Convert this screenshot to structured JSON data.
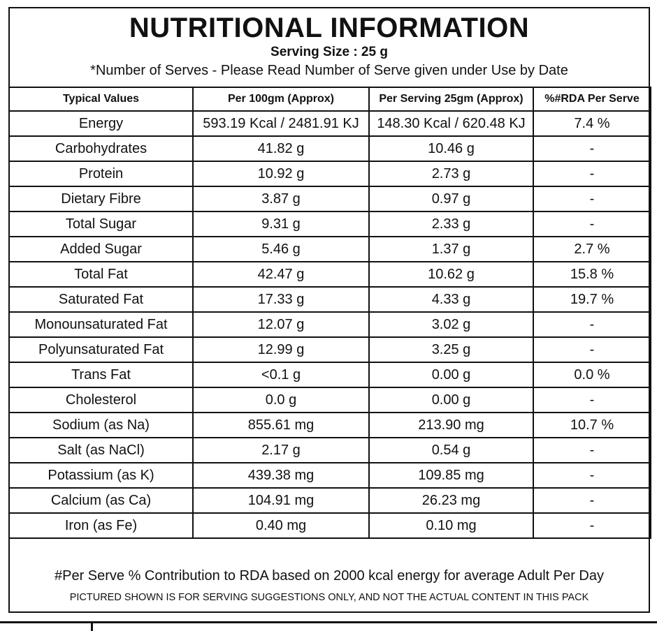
{
  "header": {
    "title": "NUTRITIONAL INFORMATION",
    "serving_size": "Serving Size : 25 g",
    "note": "*Number of Serves - Please Read Number of Serve given under Use by Date"
  },
  "table": {
    "columns": [
      "Typical Values",
      "Per 100gm (Approx)",
      "Per Serving 25gm (Approx)",
      "%#RDA Per Serve"
    ],
    "rows": [
      [
        "Energy",
        "593.19 Kcal / 2481.91 KJ",
        "148.30 Kcal / 620.48 KJ",
        "7.4 %"
      ],
      [
        "Carbohydrates",
        "41.82 g",
        "10.46 g",
        "-"
      ],
      [
        "Protein",
        "10.92 g",
        "2.73 g",
        "-"
      ],
      [
        "Dietary Fibre",
        "3.87 g",
        "0.97 g",
        "-"
      ],
      [
        "Total Sugar",
        "9.31 g",
        "2.33 g",
        "-"
      ],
      [
        "Added Sugar",
        "5.46 g",
        "1.37 g",
        "2.7 %"
      ],
      [
        "Total Fat",
        "42.47 g",
        "10.62 g",
        "15.8 %"
      ],
      [
        "Saturated Fat",
        "17.33 g",
        "4.33 g",
        "19.7 %"
      ],
      [
        "Monounsaturated Fat",
        "12.07 g",
        "3.02 g",
        "-"
      ],
      [
        "Polyunsaturated Fat",
        "12.99 g",
        "3.25 g",
        "-"
      ],
      [
        "Trans Fat",
        "<0.1 g",
        "0.00 g",
        "0.0 %"
      ],
      [
        "Cholesterol",
        "0.0 g",
        "0.00 g",
        "-"
      ],
      [
        "Sodium (as Na)",
        "855.61 mg",
        "213.90 mg",
        "10.7 %"
      ],
      [
        "Salt (as NaCl)",
        "2.17 g",
        "0.54 g",
        "-"
      ],
      [
        "Potassium (as K)",
        "439.38 mg",
        "109.85 mg",
        "-"
      ],
      [
        "Calcium (as Ca)",
        "104.91 mg",
        "26.23 mg",
        "-"
      ],
      [
        "Iron (as Fe)",
        "0.40 mg",
        "0.10 mg",
        "-"
      ]
    ]
  },
  "footer": {
    "line1": "#Per Serve % Contribution to RDA based on 2000 kcal energy for average Adult Per Day",
    "line2": "PICTURED SHOWN IS FOR SERVING SUGGESTIONS ONLY, AND NOT THE ACTUAL CONTENT IN THIS PACK"
  }
}
